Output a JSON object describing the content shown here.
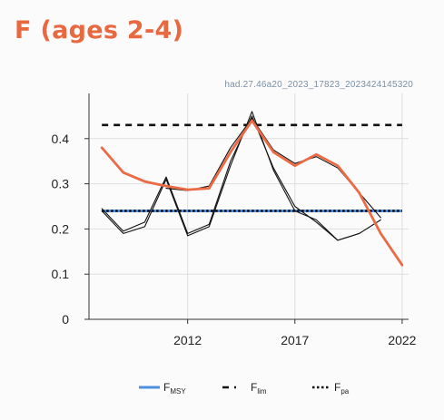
{
  "header": {
    "title": "F (ages 2-4)",
    "run_id": "had.27.46a20_2023_17823_2023424145320"
  },
  "legend": {
    "items": [
      {
        "label": "F",
        "sub": "MSY",
        "style": "solid",
        "color": "#4f8fe0"
      },
      {
        "label": "F",
        "sub": "lim",
        "style": "dashed",
        "color": "#111111"
      },
      {
        "label": "F",
        "sub": "pa",
        "style": "dotted",
        "color": "#111111"
      }
    ]
  },
  "chart_data": {
    "type": "line",
    "title": "F (ages 2-4)",
    "xlabel": "",
    "ylabel": "",
    "xlim": [
      2007.4,
      2022.3
    ],
    "ylim": [
      0,
      0.5
    ],
    "grid": true,
    "legend_position": "bottom",
    "x_ticks": [
      2012,
      2017,
      2022
    ],
    "y_ticks": [
      0,
      0.1,
      0.2,
      0.3,
      0.4
    ],
    "y_tick_labels": [
      "0",
      "0.1",
      "0.2",
      "0.3",
      "0.4"
    ],
    "reference_lines": [
      {
        "name": "Fmsy",
        "value": 0.24,
        "color": "#4f8fe0",
        "style": "solid"
      },
      {
        "name": "Flim",
        "value": 0.43,
        "color": "#111111",
        "style": "dashed"
      },
      {
        "name": "Fpa",
        "value": 0.24,
        "color": "#111111",
        "style": "dotted"
      }
    ],
    "series": [
      {
        "name": "",
        "color": "#111111",
        "width": 1.1,
        "x": [
          2008,
          2009,
          2010,
          2011,
          2012,
          2013,
          2014,
          2015,
          2016,
          2017,
          2018,
          2019,
          2020
        ],
        "values": [
          0.24,
          0.19,
          0.205,
          0.31,
          0.185,
          0.205,
          0.34,
          0.46,
          0.33,
          0.24,
          0.22,
          0.175,
          0.19
        ]
      },
      {
        "name": "",
        "color": "#111111",
        "width": 1.1,
        "x": [
          2008,
          2009,
          2010,
          2011,
          2012,
          2013,
          2014,
          2015,
          2016,
          2017,
          2018,
          2019,
          2020,
          2021
        ],
        "values": [
          0.245,
          0.195,
          0.215,
          0.315,
          0.19,
          0.21,
          0.35,
          0.45,
          0.335,
          0.25,
          0.215,
          0.175,
          0.19,
          0.22
        ]
      },
      {
        "name": "",
        "color": "#111111",
        "width": 1.1,
        "x": [
          2011,
          2012,
          2013,
          2014,
          2015,
          2016,
          2017,
          2018,
          2019,
          2020,
          2021
        ],
        "values": [
          0.29,
          0.285,
          0.295,
          0.38,
          0.445,
          0.375,
          0.345,
          0.36,
          0.335,
          0.28,
          0.225
        ]
      },
      {
        "name": "",
        "color": "#ea6b45",
        "width": 2.8,
        "x": [
          2008,
          2009,
          2010,
          2011,
          2012,
          2013,
          2014,
          2015,
          2016,
          2017,
          2018,
          2019,
          2020,
          2021,
          2022
        ],
        "values": [
          0.38,
          0.325,
          0.305,
          0.295,
          0.287,
          0.29,
          0.37,
          0.44,
          0.37,
          0.34,
          0.365,
          0.34,
          0.28,
          0.19,
          0.12
        ]
      }
    ]
  }
}
